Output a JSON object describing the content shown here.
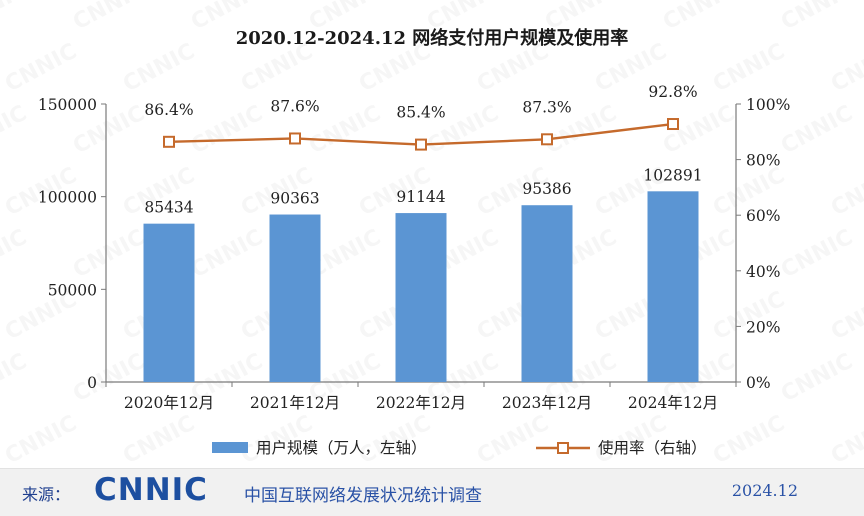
{
  "chart_data": {
    "type": "bar",
    "title": "2020.12-2024.12 网络支付用户规模及使用率",
    "categories": [
      "2020年12月",
      "2021年12月",
      "2022年12月",
      "2023年12月",
      "2024年12月"
    ],
    "series": [
      {
        "name": "用户规模（万人，左轴）",
        "type": "bar",
        "axis": "left",
        "values": [
          85434,
          90363,
          91144,
          95386,
          102891
        ],
        "labels": [
          "85434",
          "90363",
          "91144",
          "95386",
          "102891"
        ]
      },
      {
        "name": "使用率（右轴）",
        "type": "line",
        "axis": "right",
        "values": [
          86.4,
          87.6,
          85.4,
          87.3,
          92.8
        ],
        "labels": [
          "86.4%",
          "87.6%",
          "85.4%",
          "87.3%",
          "92.8%"
        ]
      }
    ],
    "y_left": {
      "ylim": [
        0,
        150000
      ],
      "ticks": [
        "0",
        "50000",
        "100000",
        "150000"
      ]
    },
    "y_right": {
      "ylim": [
        0,
        100
      ],
      "ticks": [
        "0%",
        "20%",
        "40%",
        "60%",
        "80%",
        "100%"
      ]
    },
    "grid": false,
    "legend": "bottom",
    "colors": {
      "bar": "#5b95d3",
      "line": "#c56a2c",
      "axis": "#7a7a7a",
      "text": "#222222"
    }
  },
  "watermark": "CNNIC",
  "footer": {
    "source_label": "来源：",
    "logo_text": "CNNIC",
    "org_name": "中国互联网络发展状况统计调查",
    "date": "2024.12"
  }
}
